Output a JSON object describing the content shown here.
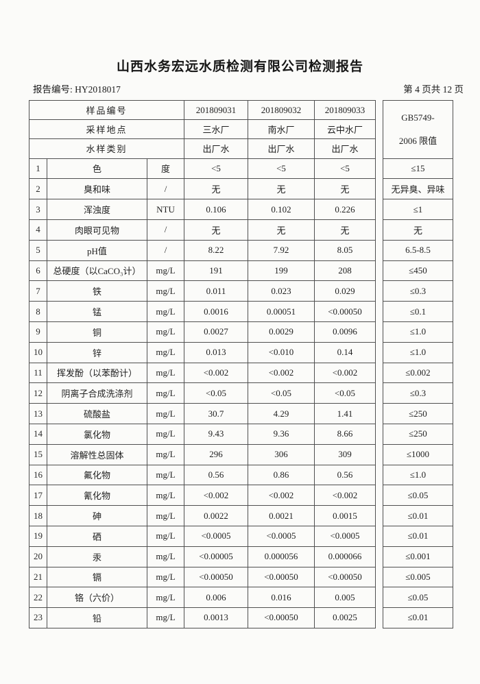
{
  "page": {
    "title": "山西水务宏远水质检测有限公司检测报告",
    "report_no": "报告编号: HY2018017",
    "page_indicator": "第 4 页共 12 页"
  },
  "table": {
    "header_rows": [
      {
        "label": "样品编号",
        "v1": "201809031",
        "v2": "201809032",
        "v3": "201809033"
      },
      {
        "label": "采样地点",
        "v1": "三水厂",
        "v2": "南水厂",
        "v3": "云中水厂"
      },
      {
        "label": "水样类别",
        "v1": "出厂水",
        "v2": "出厂水",
        "v3": "出厂水"
      }
    ],
    "limit_header": {
      "line1": "GB5749-",
      "line2": "2006 限值"
    },
    "rows": [
      {
        "no": "1",
        "name": "色",
        "unit": "度",
        "v1": "<5",
        "v2": "<5",
        "v3": "<5",
        "limit": "≤15"
      },
      {
        "no": "2",
        "name": "臭和味",
        "unit": "/",
        "v1": "无",
        "v2": "无",
        "v3": "无",
        "limit": "无异臭、异味"
      },
      {
        "no": "3",
        "name": "浑浊度",
        "unit": "NTU",
        "v1": "0.106",
        "v2": "0.102",
        "v3": "0.226",
        "limit": "≤1"
      },
      {
        "no": "4",
        "name": "肉眼可见物",
        "unit": "/",
        "v1": "无",
        "v2": "无",
        "v3": "无",
        "limit": "无"
      },
      {
        "no": "5",
        "name": "pH值",
        "unit": "/",
        "v1": "8.22",
        "v2": "7.92",
        "v3": "8.05",
        "limit": "6.5-8.5"
      },
      {
        "no": "6",
        "name": "总硬度（以CaCO₃计）",
        "unit": "mg/L",
        "v1": "191",
        "v2": "199",
        "v3": "208",
        "limit": "≤450"
      },
      {
        "no": "7",
        "name": "铁",
        "unit": "mg/L",
        "v1": "0.011",
        "v2": "0.023",
        "v3": "0.029",
        "limit": "≤0.3"
      },
      {
        "no": "8",
        "name": "锰",
        "unit": "mg/L",
        "v1": "0.0016",
        "v2": "0.00051",
        "v3": "<0.00050",
        "limit": "≤0.1"
      },
      {
        "no": "9",
        "name": "铜",
        "unit": "mg/L",
        "v1": "0.0027",
        "v2": "0.0029",
        "v3": "0.0096",
        "limit": "≤1.0"
      },
      {
        "no": "10",
        "name": "锌",
        "unit": "mg/L",
        "v1": "0.013",
        "v2": "<0.010",
        "v3": "0.14",
        "limit": "≤1.0"
      },
      {
        "no": "11",
        "name": "挥发酚（以苯酚计）",
        "unit": "mg/L",
        "v1": "<0.002",
        "v2": "<0.002",
        "v3": "<0.002",
        "limit": "≤0.002"
      },
      {
        "no": "12",
        "name": "阴离子合成洗涤剂",
        "unit": "mg/L",
        "v1": "<0.05",
        "v2": "<0.05",
        "v3": "<0.05",
        "limit": "≤0.3"
      },
      {
        "no": "13",
        "name": "硫酸盐",
        "unit": "mg/L",
        "v1": "30.7",
        "v2": "4.29",
        "v3": "1.41",
        "limit": "≤250"
      },
      {
        "no": "14",
        "name": "氯化物",
        "unit": "mg/L",
        "v1": "9.43",
        "v2": "9.36",
        "v3": "8.66",
        "limit": "≤250"
      },
      {
        "no": "15",
        "name": "溶解性总固体",
        "unit": "mg/L",
        "v1": "296",
        "v2": "306",
        "v3": "309",
        "limit": "≤1000"
      },
      {
        "no": "16",
        "name": "氟化物",
        "unit": "mg/L",
        "v1": "0.56",
        "v2": "0.86",
        "v3": "0.56",
        "limit": "≤1.0"
      },
      {
        "no": "17",
        "name": "氰化物",
        "unit": "mg/L",
        "v1": "<0.002",
        "v2": "<0.002",
        "v3": "<0.002",
        "limit": "≤0.05"
      },
      {
        "no": "18",
        "name": "砷",
        "unit": "mg/L",
        "v1": "0.0022",
        "v2": "0.0021",
        "v3": "0.0015",
        "limit": "≤0.01"
      },
      {
        "no": "19",
        "name": "硒",
        "unit": "mg/L",
        "v1": "<0.0005",
        "v2": "<0.0005",
        "v3": "<0.0005",
        "limit": "≤0.01"
      },
      {
        "no": "20",
        "name": "汞",
        "unit": "mg/L",
        "v1": "<0.00005",
        "v2": "0.000056",
        "v3": "0.000066",
        "limit": "≤0.001"
      },
      {
        "no": "21",
        "name": "镉",
        "unit": "mg/L",
        "v1": "<0.00050",
        "v2": "<0.00050",
        "v3": "<0.00050",
        "limit": "≤0.005"
      },
      {
        "no": "22",
        "name": "铬（六价）",
        "unit": "mg/L",
        "v1": "0.006",
        "v2": "0.016",
        "v3": "0.005",
        "limit": "≤0.05"
      },
      {
        "no": "23",
        "name": "铅",
        "unit": "mg/L",
        "v1": "0.0013",
        "v2": "<0.00050",
        "v3": "0.0025",
        "limit": "≤0.01"
      }
    ]
  }
}
